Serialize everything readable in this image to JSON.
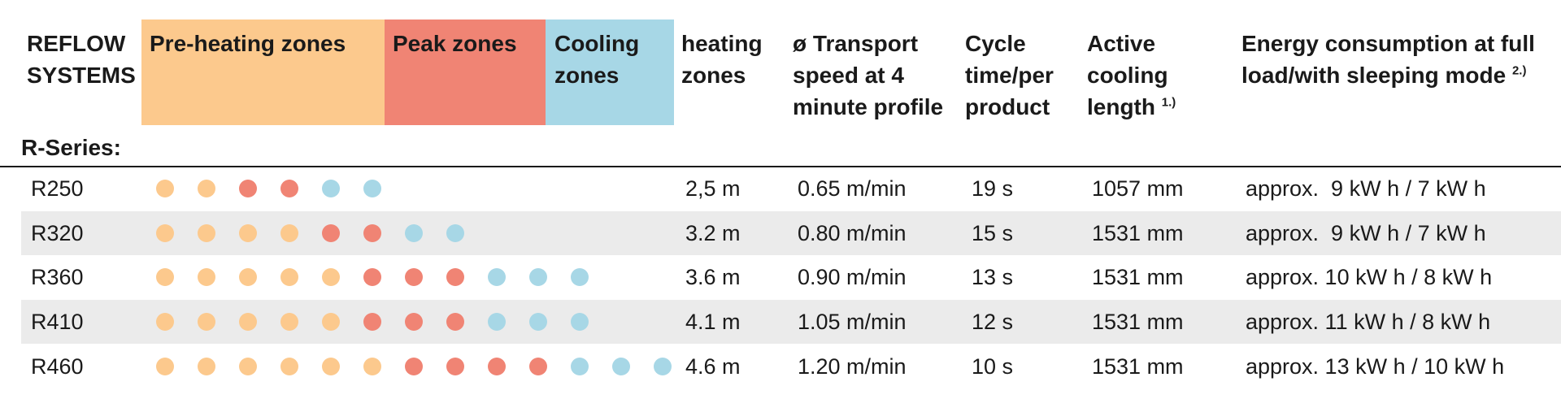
{
  "colors": {
    "preheat": "#FCC98D",
    "peak": "#F08474",
    "cooling": "#A7D7E6",
    "row_shade": "#EBEBEB"
  },
  "header": {
    "title": "REFLOW\nSYSTEMS",
    "zones": {
      "preheat": "Pre-heating zones",
      "peak": "Peak zones",
      "cooling": "Cooling\nzones"
    },
    "heating_zones": "heating\nzones",
    "transport_speed": "ø Transport\nspeed at 4\nminute profile",
    "cycle_time": "Cycle\ntime/per\nproduct",
    "cooling_length": "Active\ncooling\nlength",
    "cooling_length_note": "1.)",
    "energy": "Energy consumption at full\nload/with sleeping mode",
    "energy_note": "2.)",
    "series": "R-Series:"
  },
  "rows": [
    {
      "model": "R250",
      "zones": [
        2,
        2,
        2
      ],
      "heating": "2,5 m",
      "speed": "0.65 m/min",
      "cycle": "19 s",
      "cooling": "1057 mm",
      "energy": "approx.  9 kW h / 7 kW h"
    },
    {
      "model": "R320",
      "zones": [
        4,
        2,
        2
      ],
      "heating": "3.2 m",
      "speed": "0.80 m/min",
      "cycle": "15 s",
      "cooling": "1531 mm",
      "energy": "approx.  9 kW h / 7 kW h"
    },
    {
      "model": "R360",
      "zones": [
        5,
        3,
        3
      ],
      "heating": "3.6 m",
      "speed": "0.90 m/min",
      "cycle": "13 s",
      "cooling": "1531 mm",
      "energy": "approx. 10 kW h / 8 kW h"
    },
    {
      "model": "R410",
      "zones": [
        5,
        3,
        3
      ],
      "heating": "4.1 m",
      "speed": "1.05 m/min",
      "cycle": "12 s",
      "cooling": "1531 mm",
      "energy": "approx. 11 kW h / 8 kW h"
    },
    {
      "model": "R460",
      "zones": [
        6,
        4,
        3
      ],
      "heating": "4.6 m",
      "speed": "1.20 m/min",
      "cycle": "10 s",
      "cooling": "1531 mm",
      "energy": "approx. 13 kW h / 10 kW h"
    }
  ]
}
